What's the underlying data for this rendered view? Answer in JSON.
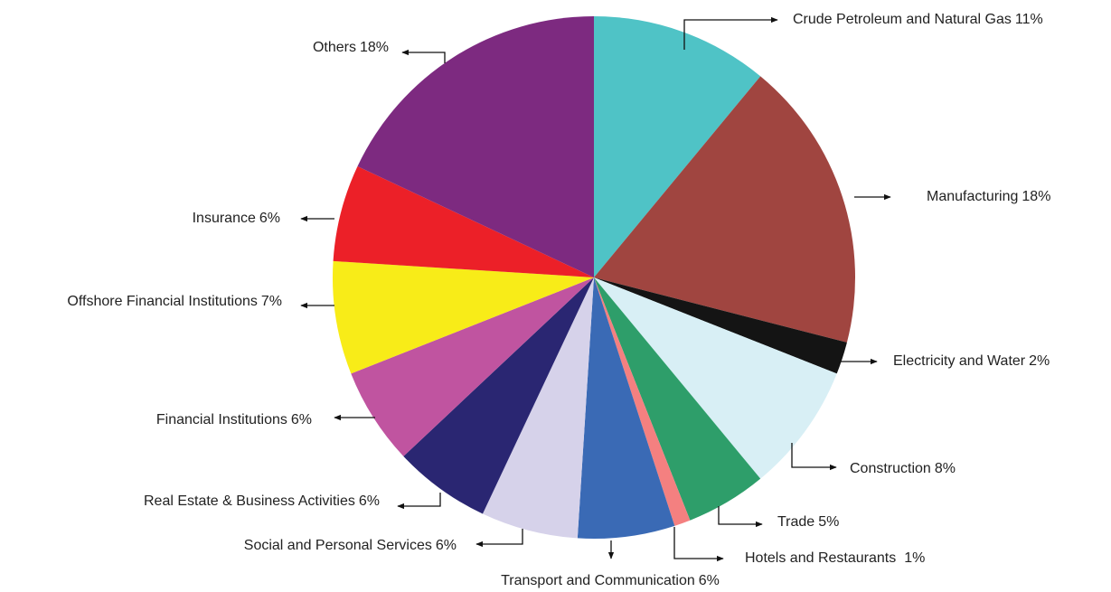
{
  "chart_data": {
    "type": "pie",
    "categories": [
      "Crude Petroleum and Natural Gas",
      "Manufacturing",
      "Electricity and Water",
      "Construction",
      "Trade",
      "Hotels and Restaurants",
      "Transport and Communication",
      "Social and Personal Services",
      "Real Estate & Business Activities",
      "Financial Institutions",
      "Offshore Financial Institutions",
      "Insurance",
      "Others"
    ],
    "values": [
      11,
      18,
      2,
      8,
      5,
      1,
      6,
      6,
      6,
      6,
      7,
      6,
      18
    ],
    "value_labels": [
      "11%",
      "18%",
      "2%",
      "8%",
      "5%",
      "1%",
      "6%",
      "6%",
      "6%",
      "6%",
      "7%",
      "6%",
      "18%"
    ],
    "colors": [
      "#4fc3c6",
      "#a04540",
      "#141414",
      "#d8eff5",
      "#2e9e6a",
      "#f48080",
      "#3a6ab5",
      "#d6d2ea",
      "#2a2672",
      "#c054a0",
      "#f8ec18",
      "#ec2028",
      "#7d2a80"
    ]
  }
}
